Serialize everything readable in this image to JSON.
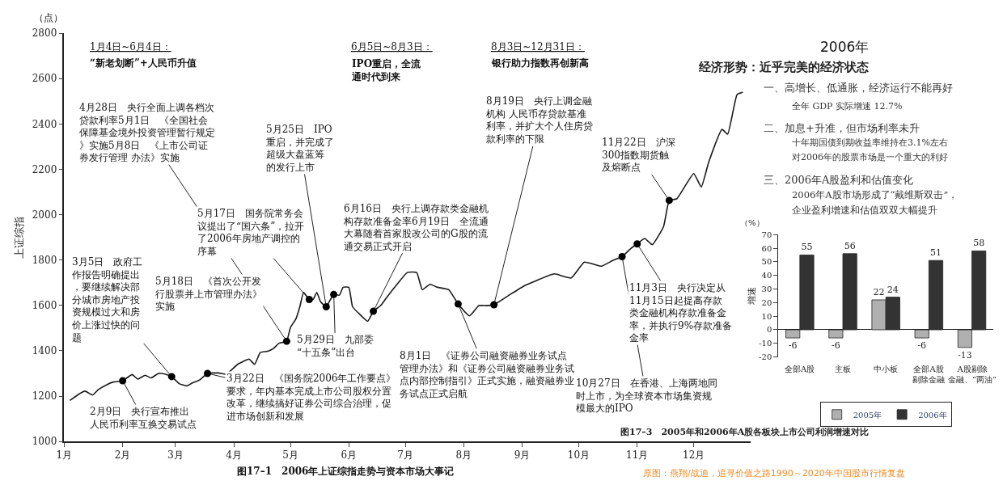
{
  "chart_data": [
    {
      "type": "line",
      "ylabel": "上证综指",
      "xlim": [
        "2006-01-01",
        "2006-12-31"
      ],
      "xticks": [
        {
          "value": "2006-01-01",
          "label": "1月"
        },
        {
          "value": "2006-02-01",
          "label": "2月"
        },
        {
          "value": "2006-03-01",
          "label": "3月"
        },
        {
          "value": "2006-04-01",
          "label": "4月"
        },
        {
          "value": "2006-05-01",
          "label": "5月"
        },
        {
          "value": "2006-06-01",
          "label": "6月"
        },
        {
          "value": "2006-07-01",
          "label": "7月"
        },
        {
          "value": "2006-08-01",
          "label": "8月"
        },
        {
          "value": "2006-09-01",
          "label": "9月"
        },
        {
          "value": "2006-10-01",
          "label": "10月"
        },
        {
          "value": "2006-11-01",
          "label": "11月"
        },
        {
          "value": "2006-12-01",
          "label": "12月"
        }
      ],
      "ylim": [
        1000,
        2800
      ],
      "yticks": [
        1000,
        1200,
        1400,
        1600,
        1800,
        2000,
        2200,
        2400,
        2600,
        2800
      ],
      "legend": false,
      "series": [
        {
          "type": "line",
          "color": "#1a1a1a",
          "marker": "none",
          "line_style": "solid",
          "x": [
            "2006-01-04",
            "2006-01-09",
            "2006-01-12",
            "2006-01-16",
            "2006-01-19",
            "2006-01-24",
            "2006-01-27",
            "2006-02-01",
            "2006-02-06",
            "2006-02-09",
            "2006-02-13",
            "2006-02-16",
            "2006-02-20",
            "2006-02-23",
            "2006-02-27",
            "2006-03-03",
            "2006-03-07",
            "2006-03-10",
            "2006-03-14",
            "2006-03-18",
            "2006-03-24",
            "2006-03-28",
            "2006-04-03",
            "2006-04-09",
            "2006-04-12",
            "2006-04-15",
            "2006-04-19",
            "2006-04-22",
            "2006-04-25",
            "2006-04-29",
            "2006-05-01",
            "2006-05-04",
            "2006-05-06",
            "2006-05-08",
            "2006-05-11",
            "2006-05-13",
            "2006-05-15",
            "2006-05-17",
            "2006-05-20",
            "2006-05-22",
            "2006-05-24",
            "2006-05-27",
            "2006-05-29",
            "2006-06-01",
            "2006-06-03",
            "2006-06-07",
            "2006-06-11",
            "2006-06-14",
            "2006-06-18",
            "2006-06-21",
            "2006-06-27",
            "2006-07-02",
            "2006-07-07",
            "2006-07-10",
            "2006-07-14",
            "2006-07-18",
            "2006-07-24",
            "2006-07-29",
            "2006-08-04",
            "2006-08-09",
            "2006-08-13",
            "2006-08-17",
            "2006-08-25",
            "2006-09-02",
            "2006-09-09",
            "2006-09-18",
            "2006-09-27",
            "2006-10-04",
            "2006-10-13",
            "2006-10-19",
            "2006-10-24",
            "2006-10-29",
            "2006-11-01",
            "2006-11-05",
            "2006-11-09",
            "2006-11-15",
            "2006-11-18",
            "2006-11-22",
            "2006-12-01",
            "2006-12-05",
            "2006-12-09",
            "2006-12-16",
            "2006-12-19",
            "2006-12-24",
            "2006-12-27"
          ],
          "values": [
            1181,
            1210,
            1222,
            1205,
            1228,
            1252,
            1262,
            1268,
            1295,
            1275,
            1292,
            1280,
            1300,
            1298,
            1286,
            1255,
            1245,
            1258,
            1272,
            1300,
            1302,
            1296,
            1340,
            1363,
            1340,
            1392,
            1398,
            1410,
            1433,
            1442,
            1502,
            1542,
            1594,
            1657,
            1626,
            1626,
            1657,
            1616,
            1594,
            1622,
            1648,
            1645,
            1680,
            1680,
            1594,
            1559,
            1530,
            1574,
            1600,
            1634,
            1697,
            1745,
            1745,
            1669,
            1693,
            1680,
            1669,
            1606,
            1554,
            1599,
            1599,
            1603,
            1645,
            1686,
            1711,
            1739,
            1721,
            1791,
            1773,
            1798,
            1815,
            1854,
            1871,
            1895,
            1868,
            1948,
            2063,
            2070,
            2181,
            2122,
            2233,
            2376,
            2355,
            2530,
            2540
          ]
        },
        {
          "type": "scatter",
          "color": "#000000",
          "marker": "circle",
          "x": [
            "2006-02-01",
            "2006-02-27",
            "2006-03-18",
            "2006-04-29",
            "2006-05-11",
            "2006-05-20",
            "2006-05-24",
            "2006-06-14",
            "2006-07-29",
            "2006-08-17",
            "2006-10-24",
            "2006-11-01",
            "2006-11-18"
          ],
          "values": [
            1268,
            1286,
            1300,
            1442,
            1626,
            1594,
            1648,
            1574,
            1606,
            1603,
            1815,
            1871,
            2063
          ]
        }
      ],
      "annotations": [
        "1月4日~6月4日：",
        "“新老划断”+人民币升值",
        "6月5日~8月3日：",
        "IPO重启，全流通时代到来",
        "8月3日~12月31日：",
        "银行助力指数再创新高",
        "5月18日　《首次公开发行股票并上市管理办法》实施",
        "（点）",
        "图17–1　2006年上证综指走势与资本市场大事记",
        "原图：燕翔/战迪，追寻价值之路1990～2020年中国股市行情复盘",
        {
          "text": "2月9日　央行宣布推出人民币利率互换交易试点",
          "x": "2006-02-01",
          "y": 1268
        },
        {
          "text": "3月5日　政府工作报告明确提出，要继续解决部分城市房地产投资规模过大和房价上涨过快的问题",
          "x": "2006-02-27",
          "y": 1286
        },
        {
          "text": "3月22日　《国务院2006年工作要点》要求，年内基本完成上市公司股权分置改革，继续搞好证券公司综合治理，促进市场创新和发展",
          "x": "2006-03-18",
          "y": 1300
        },
        {
          "text": "4月28日　央行全面上调各档次贷款利率5月1日　《全国社会保障基金境外投资管理暂行规定》实施5月8日　《上市公司证券发行管理 办法》实施",
          "x": "2006-04-29",
          "y": 1442
        },
        {
          "text": "5月17日　国务院常务会议提出了“国六条”，拉开了2006年房地产调控的序幕",
          "x": "2006-05-11",
          "y": 1626
        },
        {
          "text": "5月25日　IPO重启，并完成了超级大盘蓝筹的发行上市",
          "x": "2006-05-20",
          "y": 1594
        },
        {
          "text": "5月29日　九部委“十五条”出台",
          "x": "2006-05-24",
          "y": 1648
        },
        {
          "text": "6月16日　央行上调存款类金融机构存款准备金率6月19日　全流通大幕随着首家股改公司的G股的流通交易正式开启",
          "x": "2006-06-14",
          "y": 1574
        },
        {
          "text": "8月1日　《证券公司融资融券业务试点管理办法》和《证券公司融资融券业务试点内部控制指引》正式实施，融资融券业务试点正式启航",
          "x": "2006-07-29",
          "y": 1606
        },
        {
          "text": "8月19日　央行上调金融机构 人民币存贷款基准利率，并扩大个人住房贷款利率的下限",
          "x": "2006-08-17",
          "y": 1603
        },
        {
          "text": "10月27日　在香港、上海两地同时上市，为全球资本市场集资规模最大的IPO",
          "x": "2006-10-24",
          "y": 1815
        },
        {
          "text": "11月3日　央行决定从11月15日起提高存款类金融机构存款准备金率，并执行9%存款准备金率",
          "x": "2006-11-01",
          "y": 1871
        },
        {
          "text": "11月22日　沪深300指数期货触及熔断点",
          "x": "2006-11-18",
          "y": 2063
        }
      ]
    },
    {
      "type": "other",
      "title": "2006年",
      "subtitle": "经济形势：近乎完美的经济状态",
      "annotations": [
        "一、高增长、低通胀，经济运行不能再好",
        "全年 GDP 实际增速 12.7%",
        "二、加息+升准，但市场利率未升",
        "十年期国债到期收益率维持在3.1%左右",
        "对2006年的股票市场是一个重大的利好",
        "三、2006年A股盈利和估值变化",
        "2006年A股市场形成了“戴维斯双击”，",
        "企业盈利增速和估值双双大幅提升"
      ]
    },
    {
      "type": "bar",
      "ylabel": "增速",
      "categories": [
        "全部A股",
        "主板",
        "中小板",
        "全部A股剔除金融",
        "A股剔除金融、“两油”"
      ],
      "series": [
        {
          "name": "2005年",
          "color": "#b0b0b0",
          "values": [
            -6,
            -6,
            22,
            -6,
            -13
          ]
        },
        {
          "name": "2006年",
          "color": "#333333",
          "values": [
            55,
            56,
            24,
            51,
            58
          ]
        }
      ],
      "ylim": [
        -20,
        70
      ],
      "yticks": [
        -20,
        -10,
        0,
        10,
        20,
        30,
        40,
        50,
        60,
        70
      ],
      "legend": "bottom",
      "data_labels": true,
      "annotations": [
        "（%）",
        "图17–3　2005年和2006年A股各板块上市公司利润增速对比"
      ]
    }
  ]
}
